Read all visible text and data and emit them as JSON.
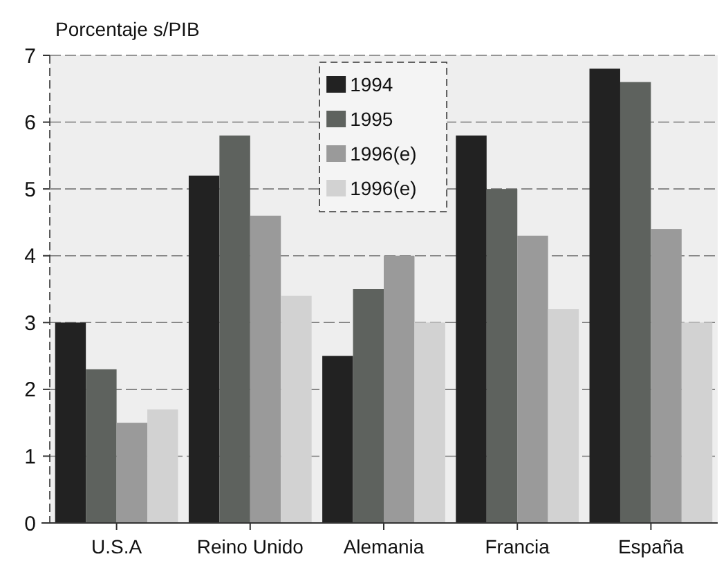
{
  "chart_data": {
    "type": "bar",
    "ylabel": "Porcentaje s/PIB",
    "categories": [
      "U.S.A",
      "Reino Unido",
      "Alemania",
      "Francia",
      "España"
    ],
    "series": [
      {
        "name": "1994",
        "color": "#222222",
        "values": [
          3.0,
          5.2,
          2.5,
          5.8,
          6.8
        ]
      },
      {
        "name": "1995",
        "color": "#5e625e",
        "values": [
          2.3,
          5.8,
          3.5,
          5.0,
          6.6
        ]
      },
      {
        "name": "1996(e)",
        "color": "#9a9a9a",
        "values": [
          1.5,
          4.6,
          4.0,
          4.3,
          4.4
        ]
      },
      {
        "name": "1996(e)",
        "color": "#d2d2d2",
        "values": [
          1.7,
          3.4,
          3.0,
          3.2,
          3.0
        ]
      }
    ],
    "ylim": [
      0,
      7
    ],
    "yticks": [
      0,
      1,
      2,
      3,
      4,
      5,
      6,
      7
    ],
    "grid": "y",
    "legend": "top"
  }
}
